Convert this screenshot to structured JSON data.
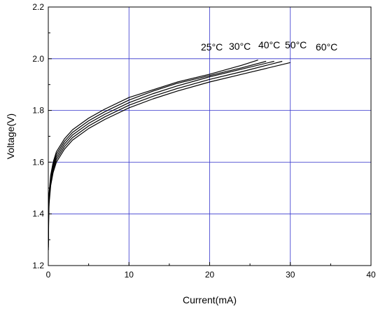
{
  "chart_data": {
    "type": "line",
    "xlabel": "Current(mA)",
    "ylabel": "Voltage(V)",
    "xlim": [
      0,
      40
    ],
    "ylim": [
      1.2,
      2.2
    ],
    "x_ticks": [
      "0",
      "10",
      "20",
      "30",
      "40"
    ],
    "y_ticks": [
      "1.2",
      "1.4",
      "1.6",
      "1.8",
      "2.0",
      "2.2"
    ],
    "grid": true,
    "grid_color": "#3333cc",
    "line_color": "#000000",
    "series": [
      {
        "name": "25°C",
        "label": "25°C",
        "x": [
          0.01,
          0.05,
          0.1,
          0.3,
          0.6,
          1,
          2,
          3,
          5,
          7,
          10,
          13,
          16,
          20,
          24,
          26
        ],
        "y": [
          1.3,
          1.43,
          1.48,
          1.55,
          1.6,
          1.64,
          1.69,
          1.725,
          1.77,
          1.805,
          1.85,
          1.88,
          1.91,
          1.94,
          1.975,
          1.995
        ]
      },
      {
        "name": "30°C",
        "label": "30°C",
        "x": [
          0.01,
          0.05,
          0.1,
          0.3,
          0.6,
          1,
          2,
          3,
          5,
          7,
          10,
          13,
          16,
          20,
          24,
          27
        ],
        "y": [
          1.29,
          1.42,
          1.47,
          1.54,
          1.59,
          1.63,
          1.68,
          1.715,
          1.76,
          1.795,
          1.84,
          1.875,
          1.905,
          1.935,
          1.965,
          1.99
        ]
      },
      {
        "name": "40°C",
        "label": "40°C",
        "x": [
          0.01,
          0.05,
          0.1,
          0.3,
          0.6,
          1,
          2,
          3,
          5,
          7,
          10,
          13,
          16,
          20,
          24,
          28
        ],
        "y": [
          1.28,
          1.41,
          1.46,
          1.53,
          1.58,
          1.62,
          1.67,
          1.705,
          1.75,
          1.785,
          1.83,
          1.865,
          1.895,
          1.93,
          1.96,
          1.99
        ]
      },
      {
        "name": "50°C",
        "label": "50°C",
        "x": [
          0.01,
          0.05,
          0.1,
          0.3,
          0.6,
          1,
          2,
          3,
          5,
          7,
          10,
          13,
          16,
          20,
          24,
          29
        ],
        "y": [
          1.27,
          1.4,
          1.45,
          1.52,
          1.57,
          1.61,
          1.66,
          1.695,
          1.74,
          1.775,
          1.82,
          1.855,
          1.885,
          1.92,
          1.95,
          1.99
        ]
      },
      {
        "name": "60°C",
        "label": "60°C",
        "x": [
          0.01,
          0.05,
          0.1,
          0.3,
          0.6,
          1,
          2,
          3,
          5,
          7,
          10,
          13,
          16,
          20,
          24,
          30
        ],
        "y": [
          1.26,
          1.39,
          1.44,
          1.51,
          1.56,
          1.6,
          1.65,
          1.685,
          1.73,
          1.765,
          1.81,
          1.845,
          1.875,
          1.91,
          1.94,
          1.985
        ]
      }
    ]
  }
}
